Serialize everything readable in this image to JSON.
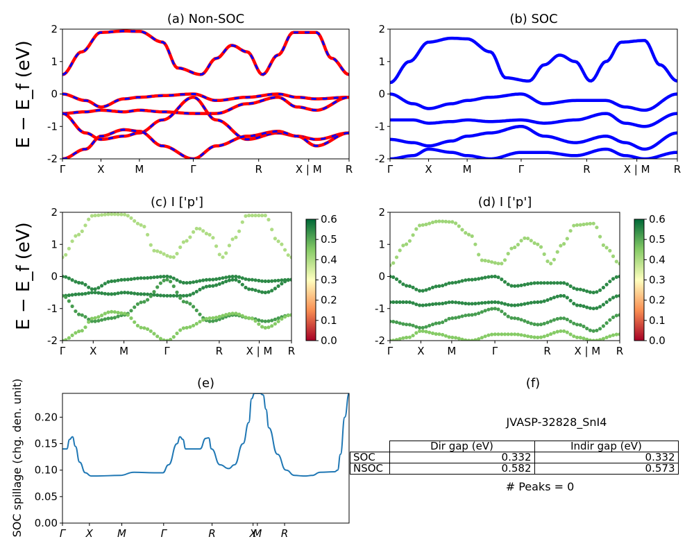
{
  "chart_data": [
    {
      "id": "a",
      "type": "line",
      "title": "(a) Non-SOC",
      "ylabel": "E − E_f (eV)",
      "ylim": [
        -2,
        2
      ],
      "yticks": [
        -2,
        -1,
        0,
        1,
        2
      ],
      "xticklabels": [
        "Γ",
        "X",
        "M",
        "Γ",
        "R",
        "X | M",
        "R"
      ],
      "series": [
        {
          "name": "",
          "color": "#ff0000",
          "x": [
            0,
            0.5,
            1.0,
            1.6,
            2.0,
            2.6,
            3.0,
            3.6,
            4.0,
            4.4,
            4.8,
            5.2,
            5.6,
            6.0,
            6.6,
            7.0,
            7.45
          ],
          "y": [
            0.6,
            1.3,
            1.9,
            1.94,
            1.93,
            1.6,
            0.8,
            0.6,
            1.1,
            1.5,
            1.3,
            0.6,
            1.2,
            1.9,
            1.9,
            1.1,
            0.6
          ]
        },
        {
          "name": "",
          "color": "#ff0000",
          "x": [
            0,
            0.6,
            1.0,
            1.6,
            2.0,
            2.6,
            3.4,
            4.0,
            4.8,
            5.6,
            6.1,
            6.6,
            7.45
          ],
          "y": [
            0.0,
            -0.2,
            -0.4,
            -0.15,
            -0.1,
            -0.05,
            0.0,
            -0.2,
            -0.1,
            0.0,
            -0.1,
            -0.15,
            -0.1
          ]
        },
        {
          "name": "",
          "color": "#ff0000",
          "x": [
            0,
            0.6,
            1.0,
            1.6,
            2.0,
            2.6,
            3.4,
            4.0,
            4.8,
            5.6,
            6.1,
            6.6,
            7.45
          ],
          "y": [
            -0.6,
            -0.55,
            -0.5,
            -0.55,
            -0.5,
            -0.55,
            -0.6,
            -0.6,
            -0.3,
            -0.1,
            -0.4,
            -0.5,
            -0.1
          ]
        },
        {
          "name": "",
          "color": "#ff0000",
          "x": [
            0,
            0.6,
            1.0,
            1.6,
            2.0,
            2.6,
            3.4,
            4.0,
            4.8,
            5.6,
            6.1,
            6.6,
            7.45
          ],
          "y": [
            -0.6,
            -1.2,
            -1.4,
            -1.3,
            -1.2,
            -0.8,
            -0.1,
            -0.8,
            -1.4,
            -1.2,
            -1.3,
            -1.4,
            -1.2
          ]
        },
        {
          "name": "",
          "color": "#ff0000",
          "x": [
            0,
            0.6,
            1.0,
            1.6,
            2.0,
            2.6,
            3.4,
            4.0,
            4.8,
            5.6,
            6.1,
            6.6,
            7.45
          ],
          "y": [
            -2.0,
            -1.7,
            -1.3,
            -1.1,
            -1.15,
            -1.6,
            -2.0,
            -1.6,
            -1.3,
            -1.15,
            -1.3,
            -1.6,
            -1.2
          ]
        }
      ]
    },
    {
      "id": "b",
      "type": "line",
      "title": "(b) SOC",
      "ylim": [
        -2,
        2
      ],
      "yticks": [
        -2,
        -1,
        0,
        1,
        2
      ],
      "xticklabels": [
        "Γ",
        "X",
        "M",
        "Γ",
        "R",
        "X | M",
        "R"
      ],
      "series": [
        {
          "name": "",
          "color": "#0000ff",
          "x": [
            0,
            0.5,
            1.0,
            1.6,
            2.0,
            2.6,
            3.0,
            3.6,
            4.0,
            4.4,
            4.8,
            5.2,
            5.6,
            6.0,
            6.6,
            7.0,
            7.45
          ],
          "y": [
            0.35,
            1.0,
            1.6,
            1.72,
            1.7,
            1.3,
            0.5,
            0.4,
            0.9,
            1.2,
            1.0,
            0.4,
            1.0,
            1.6,
            1.65,
            0.9,
            0.4
          ]
        },
        {
          "name": "",
          "color": "#0000ff",
          "x": [
            0,
            0.6,
            1.0,
            1.6,
            2.0,
            2.6,
            3.4,
            4.0,
            4.8,
            5.6,
            6.1,
            6.6,
            7.45
          ],
          "y": [
            0.0,
            -0.3,
            -0.45,
            -0.3,
            -0.2,
            -0.1,
            0.0,
            -0.3,
            -0.2,
            -0.2,
            -0.4,
            -0.5,
            0.0
          ]
        },
        {
          "name": "",
          "color": "#0000ff",
          "x": [
            0,
            0.6,
            1.0,
            1.6,
            2.0,
            2.6,
            3.4,
            4.0,
            4.8,
            5.6,
            6.1,
            6.6,
            7.45
          ],
          "y": [
            -0.8,
            -0.8,
            -0.9,
            -0.85,
            -0.8,
            -0.85,
            -0.8,
            -0.9,
            -0.8,
            -0.6,
            -0.9,
            -1.0,
            -0.6
          ]
        },
        {
          "name": "",
          "color": "#0000ff",
          "x": [
            0,
            0.6,
            1.0,
            1.6,
            2.0,
            2.6,
            3.4,
            4.0,
            4.8,
            5.6,
            6.1,
            6.6,
            7.45
          ],
          "y": [
            -1.4,
            -1.5,
            -1.6,
            -1.45,
            -1.3,
            -1.2,
            -1.0,
            -1.3,
            -1.5,
            -1.3,
            -1.5,
            -1.7,
            -1.2
          ]
        },
        {
          "name": "",
          "color": "#0000ff",
          "x": [
            0,
            0.6,
            1.0,
            1.6,
            2.0,
            2.6,
            3.4,
            4.0,
            4.8,
            5.6,
            6.1,
            6.6,
            7.45
          ],
          "y": [
            -2.0,
            -1.9,
            -1.7,
            -1.8,
            -1.9,
            -2.0,
            -1.8,
            -1.8,
            -1.9,
            -1.7,
            -1.9,
            -2.0,
            -1.8
          ]
        }
      ]
    },
    {
      "id": "c",
      "type": "scatter",
      "title": "(c)  I ['p']",
      "ylabel": "E − E_f (eV)",
      "ylim": [
        -2,
        2
      ],
      "yticks": [
        -2,
        -1,
        0,
        1,
        2
      ],
      "xticklabels": [
        "Γ",
        "X",
        "M",
        "Γ",
        "R",
        "X | M",
        "R"
      ],
      "colorbar": {
        "range": [
          0.0,
          0.6
        ],
        "ticks": [
          "0.0",
          "0.1",
          "0.2",
          "0.3",
          "0.4",
          "0.5",
          "0.6"
        ],
        "colormap": "RdYlGn"
      },
      "bands": [
        {
          "weight": 0.4,
          "ref": "a.0"
        },
        {
          "weight": 0.55,
          "ref": "a.1"
        },
        {
          "weight": 0.55,
          "ref": "a.2"
        },
        {
          "weight": 0.52,
          "ref": "a.3"
        },
        {
          "weight": 0.45,
          "ref": "a.4"
        }
      ]
    },
    {
      "id": "d",
      "type": "scatter",
      "title": "(d) I ['p']",
      "ylim": [
        -2,
        2
      ],
      "yticks": [
        -2,
        -1,
        0,
        1,
        2
      ],
      "xticklabels": [
        "Γ",
        "X",
        "M",
        "Γ",
        "R",
        "X | M",
        "R"
      ],
      "colorbar": {
        "range": [
          0.0,
          0.6
        ],
        "ticks": [
          "0.0",
          "0.1",
          "0.2",
          "0.3",
          "0.4",
          "0.5",
          "0.6"
        ],
        "colormap": "RdYlGn"
      },
      "bands": [
        {
          "weight": 0.42,
          "ref": "b.0"
        },
        {
          "weight": 0.55,
          "ref": "b.1"
        },
        {
          "weight": 0.55,
          "ref": "b.2"
        },
        {
          "weight": 0.52,
          "ref": "b.3"
        },
        {
          "weight": 0.45,
          "ref": "b.4"
        }
      ]
    },
    {
      "id": "e",
      "type": "line",
      "title": "(e)",
      "ylabel": "SOC spillage (chg. den. unit)",
      "ylim": [
        0,
        0.245
      ],
      "yticks": [
        "0.00",
        "0.05",
        "0.10",
        "0.15",
        "0.20"
      ],
      "xticklabels": [
        "Γ",
        "X",
        "M",
        "Γ",
        "R",
        "X",
        "M",
        "R"
      ],
      "xtick_pos": [
        0,
        0.094,
        0.207,
        0.353,
        0.522,
        0.665,
        0.68,
        0.775
      ],
      "series": [
        {
          "name": "",
          "color": "#1f77b4",
          "x": [
            0,
            0.015,
            0.025,
            0.035,
            0.045,
            0.06,
            0.08,
            0.1,
            0.12,
            0.2,
            0.25,
            0.32,
            0.35,
            0.37,
            0.4,
            0.41,
            0.42,
            0.43,
            0.445,
            0.48,
            0.5,
            0.51,
            0.52,
            0.55,
            0.58,
            0.6,
            0.63,
            0.65,
            0.66,
            0.67,
            0.69,
            0.7,
            0.71,
            0.72,
            0.75,
            0.78,
            0.81,
            0.84,
            0.85,
            0.87,
            0.9,
            0.95,
            0.96,
            0.97,
            0.985,
            1.0
          ],
          "y": [
            0.14,
            0.14,
            0.158,
            0.163,
            0.145,
            0.115,
            0.095,
            0.089,
            0.089,
            0.09,
            0.096,
            0.095,
            0.095,
            0.11,
            0.15,
            0.163,
            0.158,
            0.14,
            0.14,
            0.14,
            0.16,
            0.161,
            0.14,
            0.11,
            0.103,
            0.11,
            0.15,
            0.19,
            0.235,
            0.245,
            0.245,
            0.242,
            0.215,
            0.18,
            0.13,
            0.1,
            0.09,
            0.089,
            0.089,
            0.09,
            0.096,
            0.097,
            0.1,
            0.13,
            0.2,
            0.245
          ]
        }
      ]
    }
  ],
  "panel_f": {
    "title": "(f)",
    "material": "JVASP-32828_SnI4",
    "table": {
      "headers": [
        "Dir gap (eV)",
        "Indir gap (eV)"
      ],
      "rows": [
        {
          "label": "SOC",
          "dir": "0.332",
          "indir": "0.332"
        },
        {
          "label": "NSOC",
          "dir": "0.582",
          "indir": "0.573"
        }
      ]
    },
    "peaks": "# Peaks = 0"
  }
}
